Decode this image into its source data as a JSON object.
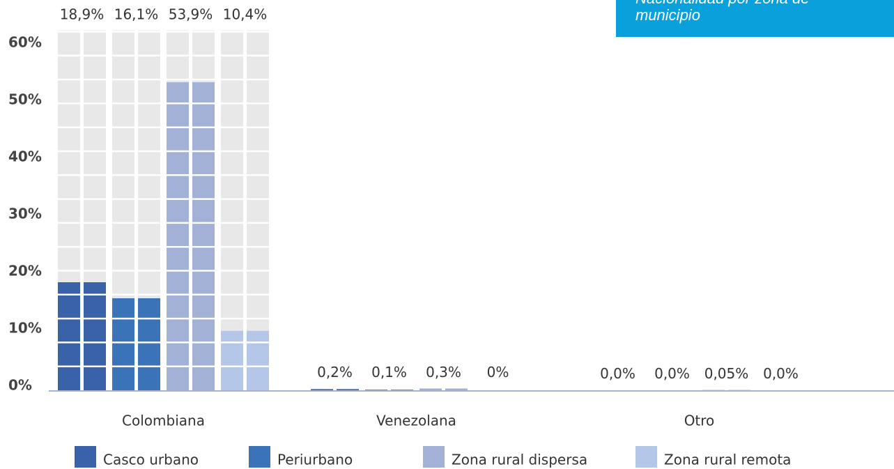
{
  "chart_data": {
    "type": "bar",
    "title": "Nacionalidad por zona de municipio",
    "categories": [
      "Colombiana",
      "Venezolana",
      "Otro"
    ],
    "series": [
      {
        "name": "Casco urbano",
        "color": "#3a62a8",
        "values": [
          18.9,
          0.2,
          0.0
        ],
        "value_labels": [
          "18,9%",
          "0,2%",
          "0,0%"
        ]
      },
      {
        "name": "Periurbano",
        "color": "#3b73b9",
        "values": [
          16.1,
          0.1,
          0.0
        ],
        "value_labels": [
          "16,1%",
          "0,1%",
          "0,0%"
        ]
      },
      {
        "name": "Zona rural dispersa",
        "color": "#a3b1d6",
        "values": [
          53.9,
          0.3,
          0.05
        ],
        "value_labels": [
          "53,9%",
          "0,3%",
          "0,05%"
        ]
      },
      {
        "name": "Zona rural remota",
        "color": "#b5c7e8",
        "values": [
          10.4,
          0,
          0.0
        ],
        "value_labels": [
          "10,4%",
          "0%",
          "0,0%"
        ]
      }
    ],
    "ylim": [
      0,
      63
    ],
    "yticks": [
      {
        "value": 0,
        "label": "0%"
      },
      {
        "value": 10,
        "label": "10%"
      },
      {
        "value": 20,
        "label": "20%"
      },
      {
        "value": 30,
        "label": "30%"
      },
      {
        "value": 40,
        "label": "40%"
      },
      {
        "value": 50,
        "label": "50%"
      },
      {
        "value": 60,
        "label": "60%"
      }
    ],
    "legend": "bottom"
  }
}
